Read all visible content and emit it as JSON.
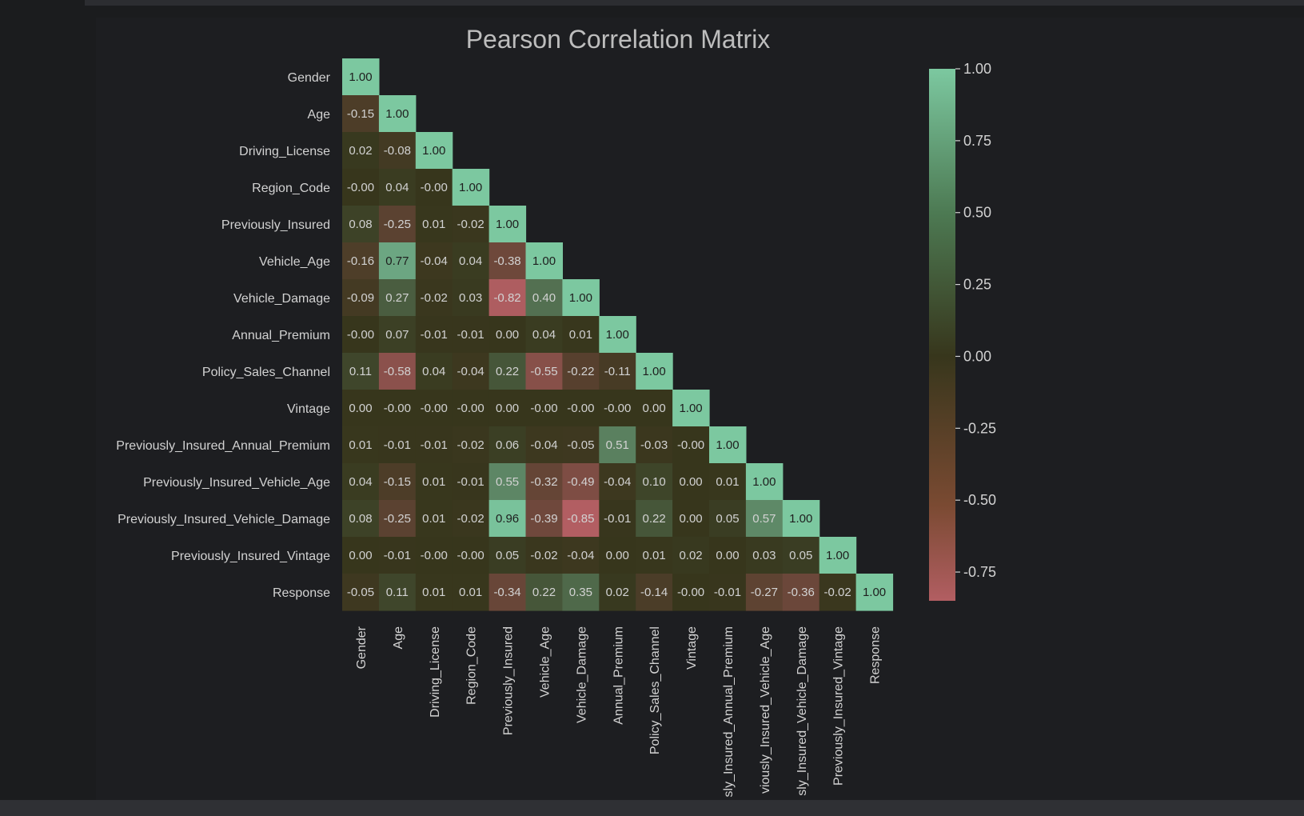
{
  "chart_data": {
    "type": "heatmap",
    "title": "Pearson Correlation Matrix",
    "labels": [
      "Gender",
      "Age",
      "Driving_License",
      "Region_Code",
      "Previously_Insured",
      "Vehicle_Age",
      "Vehicle_Damage",
      "Annual_Premium",
      "Policy_Sales_Channel",
      "Vintage",
      "Previously_Insured_Annual_Premium",
      "Previously_Insured_Vehicle_Age",
      "Previously_Insured_Vehicle_Damage",
      "Previously_Insured_Vintage",
      "Response"
    ],
    "x_tick_visible": [
      "Gender",
      "Age",
      "Driving_License",
      "Region_Code",
      "Previously_Insured",
      "Vehicle_Age",
      "Vehicle_Damage",
      "Annual_Premium",
      "Policy_Sales_Channel",
      "Vintage",
      "sly_Insured_Annual_Premium",
      "viously_Insured_Vehicle_Age",
      "sly_Insured_Vehicle_Damage",
      "Previously_Insured_Vintage",
      "Response"
    ],
    "matrix": [
      [
        "1.00"
      ],
      [
        "-0.15",
        "1.00"
      ],
      [
        "0.02",
        "-0.08",
        "1.00"
      ],
      [
        "-0.00",
        "0.04",
        "-0.00",
        "1.00"
      ],
      [
        "0.08",
        "-0.25",
        "0.01",
        "-0.02",
        "1.00"
      ],
      [
        "-0.16",
        "0.77",
        "-0.04",
        "0.04",
        "-0.38",
        "1.00"
      ],
      [
        "-0.09",
        "0.27",
        "-0.02",
        "0.03",
        "-0.82",
        "0.40",
        "1.00"
      ],
      [
        "-0.00",
        "0.07",
        "-0.01",
        "-0.01",
        "0.00",
        "0.04",
        "0.01",
        "1.00"
      ],
      [
        "0.11",
        "-0.58",
        "0.04",
        "-0.04",
        "0.22",
        "-0.55",
        "-0.22",
        "-0.11",
        "1.00"
      ],
      [
        "0.00",
        "-0.00",
        "-0.00",
        "-0.00",
        "0.00",
        "-0.00",
        "-0.00",
        "-0.00",
        "0.00",
        "1.00"
      ],
      [
        "0.01",
        "-0.01",
        "-0.01",
        "-0.02",
        "0.06",
        "-0.04",
        "-0.05",
        "0.51",
        "-0.03",
        "-0.00",
        "1.00"
      ],
      [
        "0.04",
        "-0.15",
        "0.01",
        "-0.01",
        "0.55",
        "-0.32",
        "-0.49",
        "-0.04",
        "0.10",
        "0.00",
        "0.01",
        "1.00"
      ],
      [
        "0.08",
        "-0.25",
        "0.01",
        "-0.02",
        "0.96",
        "-0.39",
        "-0.85",
        "-0.01",
        "0.22",
        "0.00",
        "0.05",
        "0.57",
        "1.00"
      ],
      [
        "0.00",
        "-0.01",
        "-0.00",
        "-0.00",
        "0.05",
        "-0.02",
        "-0.04",
        "0.00",
        "0.01",
        "0.02",
        "0.00",
        "0.03",
        "0.05",
        "1.00"
      ],
      [
        "-0.05",
        "0.11",
        "0.01",
        "0.01",
        "-0.34",
        "0.22",
        "0.35",
        "0.02",
        "-0.14",
        "-0.00",
        "-0.01",
        "-0.27",
        "-0.36",
        "-0.02",
        "1.00"
      ]
    ],
    "colorbar": {
      "min": -0.85,
      "max": 1.0,
      "ticks": [
        "1.00",
        "0.75",
        "0.50",
        "0.25",
        "0.00",
        "-0.25",
        "-0.50",
        "-0.75"
      ]
    },
    "colors": {
      "high": "#7cc8a0",
      "mid": "#37361c",
      "low": "#b25e62",
      "text": "#d2d2d2",
      "cell_text_dark": "#1e1e1e",
      "title": "#bdbdbd"
    }
  }
}
